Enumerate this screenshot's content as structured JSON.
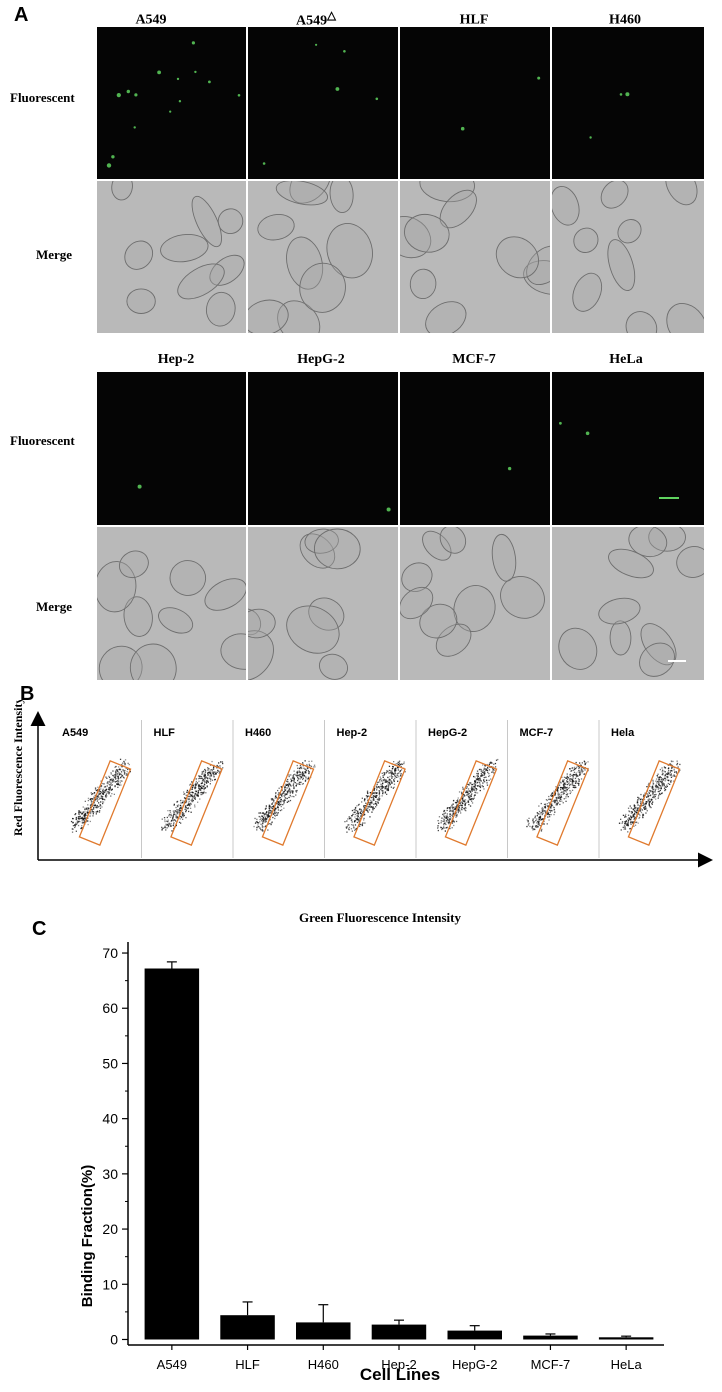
{
  "panel_a": {
    "letter": "A",
    "row_labels": {
      "fluorescent": "Fluorescent",
      "merge": "Merge"
    },
    "block1": {
      "cells": [
        {
          "name": "A549",
          "sup": ""
        },
        {
          "name": "A549",
          "sup": "△"
        },
        {
          "name": "HLF",
          "sup": ""
        },
        {
          "name": "H460",
          "sup": ""
        }
      ]
    },
    "block2": {
      "cells": [
        {
          "name": "Hep-2",
          "sup": ""
        },
        {
          "name": "HepG-2",
          "sup": ""
        },
        {
          "name": "MCF-7",
          "sup": ""
        },
        {
          "name": "HeLa",
          "sup": ""
        }
      ]
    },
    "colors": {
      "fluor_bg": "#050505",
      "merge_bg": "#b9b9b9",
      "green_dot": "#5fd35f"
    }
  },
  "panel_b": {
    "letter": "B",
    "ylabel": "Red Fluorescence Intensity",
    "xlabel": "Green Fluorescence Intensity",
    "plots": [
      "A549",
      "HLF",
      "H460",
      "Hep-2",
      "HepG-2",
      "MCF-7",
      "Hela"
    ],
    "gate_color": "#e07a2e"
  },
  "panel_c": {
    "letter": "C",
    "chart_data": {
      "type": "bar",
      "categories": [
        "A549",
        "HLF",
        "H460",
        "Hep-2",
        "HepG-2",
        "MCF-7",
        "HeLa"
      ],
      "values": [
        67.2,
        4.4,
        3.1,
        2.7,
        1.6,
        0.7,
        0.4
      ],
      "errors": [
        1.2,
        2.4,
        3.2,
        0.8,
        0.9,
        0.3,
        0.2
      ],
      "ylabel": "Binding Fraction(%)",
      "xlabel": "Cell Lines",
      "ylim": [
        -1,
        72
      ],
      "yticks": [
        0,
        10,
        20,
        30,
        40,
        50,
        60,
        70
      ],
      "bar_color": "#000000"
    }
  }
}
